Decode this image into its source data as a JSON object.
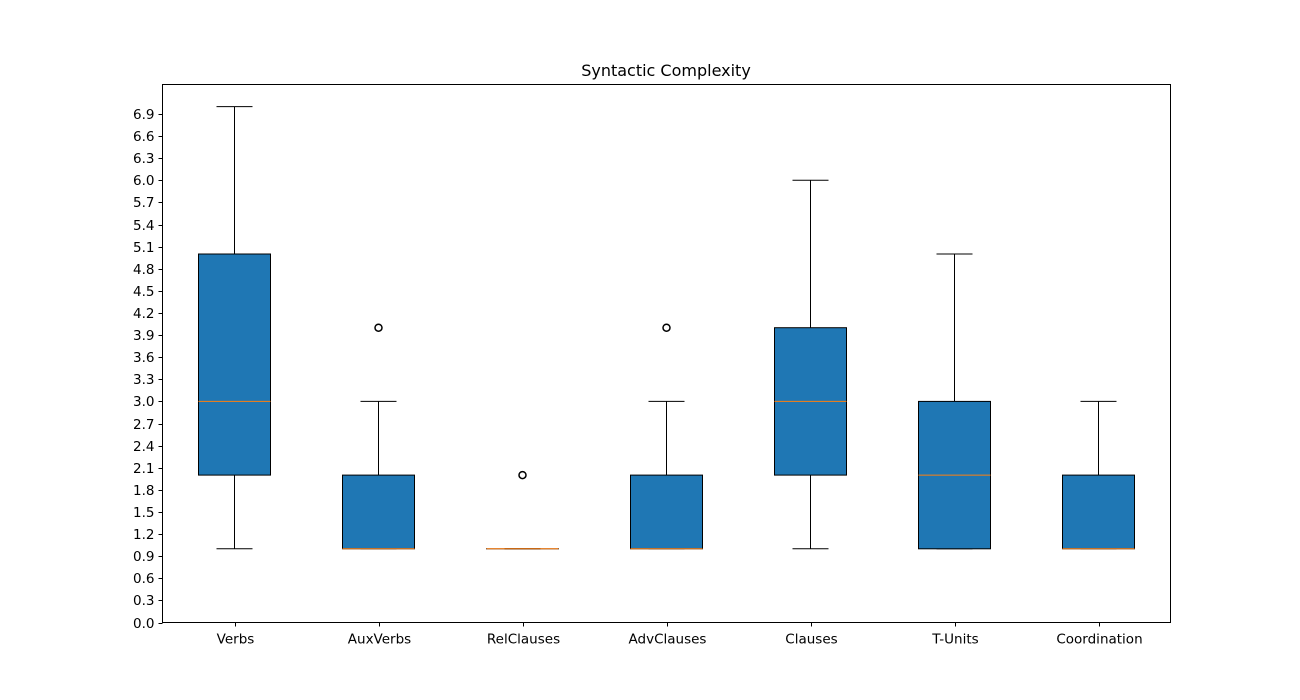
{
  "chart_data": {
    "type": "box",
    "title": "Syntactic Complexity",
    "xlabel": "",
    "ylabel": "",
    "ylim": [
      0,
      7.3
    ],
    "yticks": [
      0.0,
      0.3,
      0.6,
      0.9,
      1.2,
      1.5,
      1.8,
      2.1,
      2.4,
      2.7,
      3.0,
      3.3,
      3.6,
      3.9,
      4.2,
      4.5,
      4.8,
      5.1,
      5.4,
      5.7,
      6.0,
      6.3,
      6.6,
      6.9
    ],
    "ytick_labels": [
      "0.0",
      "0.3",
      "0.6",
      "0.9",
      "1.2",
      "1.5",
      "1.8",
      "2.1",
      "2.4",
      "2.7",
      "3.0",
      "3.3",
      "3.6",
      "3.9",
      "4.2",
      "4.5",
      "4.8",
      "5.1",
      "5.4",
      "5.7",
      "6.0",
      "6.3",
      "6.6",
      "6.9"
    ],
    "grid": false,
    "colors": {
      "box_fill": "#1f77b4",
      "median": "#ff7f0e",
      "edge": "#000000"
    },
    "categories": [
      "Verbs",
      "AuxVerbs",
      "RelClauses",
      "AdvClauses",
      "Clauses",
      "T-Units",
      "Coordination"
    ],
    "boxes": [
      {
        "label": "Verbs",
        "whisker_low": 1,
        "q1": 2,
        "median": 3,
        "q3": 5,
        "whisker_high": 7,
        "outliers": []
      },
      {
        "label": "AuxVerbs",
        "whisker_low": 1,
        "q1": 1,
        "median": 1,
        "q3": 2,
        "whisker_high": 3,
        "outliers": [
          4
        ]
      },
      {
        "label": "RelClauses",
        "whisker_low": 1,
        "q1": 1,
        "median": 1,
        "q3": 1,
        "whisker_high": 1,
        "outliers": [
          2
        ]
      },
      {
        "label": "AdvClauses",
        "whisker_low": 1,
        "q1": 1,
        "median": 1,
        "q3": 2,
        "whisker_high": 3,
        "outliers": [
          4
        ]
      },
      {
        "label": "Clauses",
        "whisker_low": 1,
        "q1": 2,
        "median": 3,
        "q3": 4,
        "whisker_high": 6,
        "outliers": []
      },
      {
        "label": "T-Units",
        "whisker_low": 1,
        "q1": 1,
        "median": 2,
        "q3": 3,
        "whisker_high": 5,
        "outliers": []
      },
      {
        "label": "Coordination",
        "whisker_low": 1,
        "q1": 1,
        "median": 1,
        "q3": 2,
        "whisker_high": 3,
        "outliers": []
      }
    ]
  }
}
